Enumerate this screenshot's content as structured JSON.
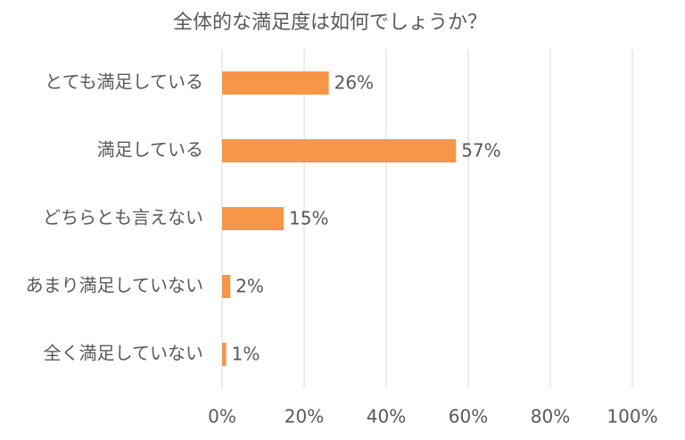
{
  "chart_data": {
    "type": "bar",
    "orientation": "horizontal",
    "title": "全体的な満足度は如何でしょうか？",
    "categories": [
      "とても満足している",
      "満足している",
      "どちらとも言えない",
      "あまり満足していない",
      "全く満足していない"
    ],
    "values": [
      26,
      57,
      15,
      2,
      1
    ],
    "value_labels": [
      "26%",
      "57%",
      "15%",
      "2%",
      "1%"
    ],
    "color": "#f79646",
    "xlim": [
      0,
      100
    ],
    "xticks": [
      {
        "value": 0,
        "label": "0%"
      },
      {
        "value": 20,
        "label": "20%"
      },
      {
        "value": 40,
        "label": "40%"
      },
      {
        "value": 60,
        "label": "60%"
      },
      {
        "value": 80,
        "label": "80%"
      },
      {
        "value": 100,
        "label": "100%"
      }
    ],
    "grid": true
  }
}
